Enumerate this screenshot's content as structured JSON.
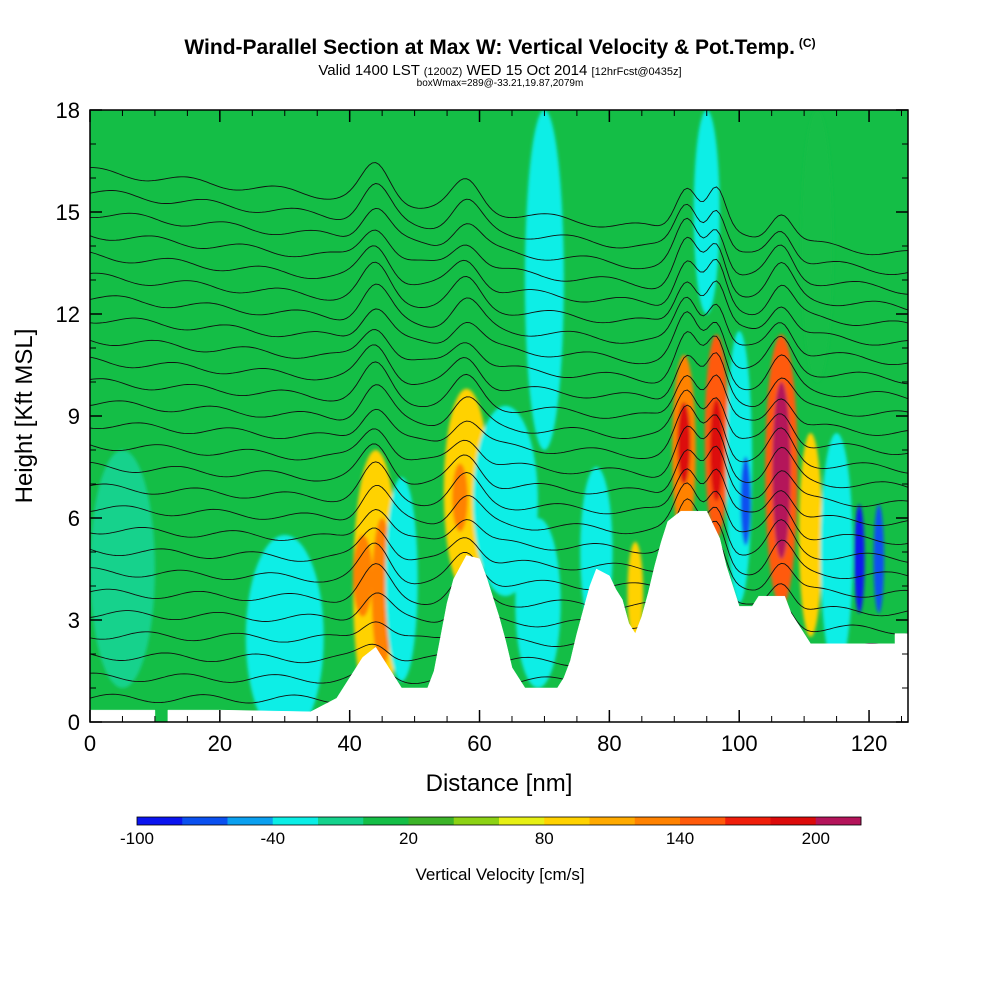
{
  "header": {
    "title": "Wind-Parallel Section at Max W: Vertical Velocity & Pot.Temp.",
    "title_mark": "(C)",
    "subtitle_main": "Valid 1400 LST",
    "subtitle_utc": "(1200Z)",
    "subtitle_date": "WED 15 Oct 2014",
    "subtitle_fcst": "[12hrFcst@0435z]",
    "detail": "boxWmax=289@-33.21,19.87,2079m"
  },
  "chart_data": {
    "type": "heatmap",
    "xlabel": "Distance [nm]",
    "ylabel": "Height [Kft MSL]",
    "xlim": [
      0,
      126
    ],
    "ylim": [
      0,
      18
    ],
    "xticks": [
      "0",
      "20",
      "40",
      "60",
      "80",
      "100",
      "120"
    ],
    "yticks": [
      "0",
      "3",
      "6",
      "9",
      "12",
      "15",
      "18"
    ],
    "colorbar": {
      "label": "Vertical Velocity [cm/s]",
      "tick_labels": [
        "-100",
        "-40",
        "20",
        "80",
        "140",
        "200"
      ],
      "tick_values": [
        -100,
        -40,
        20,
        80,
        140,
        200
      ],
      "min": -100,
      "step": 20,
      "colors": [
        "#0a14f0",
        "#0a50f0",
        "#0aa0f0",
        "#0aeee6",
        "#14d28c",
        "#14be46",
        "#3cb428",
        "#8cd214",
        "#e6f014",
        "#ffd200",
        "#ffaa00",
        "#ff8200",
        "#ff5a0a",
        "#f01e0a",
        "#dc0a0a",
        "#b4145a"
      ]
    },
    "background_color": "#14be46",
    "terrain": [
      [
        0,
        0.35
      ],
      [
        10,
        0.35
      ],
      [
        10,
        0
      ],
      [
        12,
        0
      ],
      [
        12,
        0.35
      ],
      [
        20,
        0.35
      ],
      [
        34,
        0.3
      ],
      [
        38,
        0.7
      ],
      [
        39,
        1.0
      ],
      [
        40,
        1.3
      ],
      [
        41,
        1.6
      ],
      [
        42,
        1.9
      ],
      [
        44,
        2.2
      ],
      [
        45,
        1.9
      ],
      [
        47,
        1.3
      ],
      [
        48,
        1.0
      ],
      [
        50,
        1.0
      ],
      [
        52,
        1.0
      ],
      [
        53,
        1.5
      ],
      [
        55,
        3.5
      ],
      [
        56,
        4.2
      ],
      [
        58,
        4.9
      ],
      [
        60,
        4.8
      ],
      [
        61,
        4.3
      ],
      [
        62,
        3.7
      ],
      [
        63,
        3.1
      ],
      [
        64,
        2.4
      ],
      [
        65,
        1.6
      ],
      [
        66,
        1.3
      ],
      [
        67,
        1.0
      ],
      [
        72,
        1.0
      ],
      [
        73,
        1.3
      ],
      [
        74,
        1.8
      ],
      [
        75,
        2.6
      ],
      [
        76,
        3.3
      ],
      [
        77,
        4.0
      ],
      [
        78,
        4.5
      ],
      [
        80,
        4.3
      ],
      [
        81,
        3.9
      ],
      [
        82,
        3.6
      ],
      [
        83,
        2.9
      ],
      [
        84,
        2.6
      ],
      [
        85,
        3.1
      ],
      [
        86,
        3.8
      ],
      [
        87,
        4.6
      ],
      [
        88,
        5.3
      ],
      [
        89,
        5.9
      ],
      [
        91,
        6.2
      ],
      [
        95,
        6.2
      ],
      [
        97,
        5.4
      ],
      [
        98,
        4.6
      ],
      [
        99,
        4.0
      ],
      [
        100,
        3.4
      ],
      [
        102,
        3.4
      ],
      [
        103,
        3.7
      ],
      [
        107,
        3.7
      ],
      [
        108,
        3.2
      ],
      [
        110,
        2.6
      ],
      [
        111,
        2.3
      ],
      [
        124,
        2.3
      ],
      [
        124,
        2.6
      ],
      [
        126,
        2.6
      ]
    ],
    "features": [
      {
        "x": 44,
        "z": 4.0,
        "w": 3.5,
        "h": 4.0,
        "value": 90
      },
      {
        "x": 42,
        "z": 4.3,
        "w": 1.5,
        "h": 1.2,
        "value": 130
      },
      {
        "x": 45,
        "z": 3.8,
        "w": 1.6,
        "h": 2.2,
        "value": 125
      },
      {
        "x": 48,
        "z": 4.2,
        "w": 2.5,
        "h": 3.0,
        "value": -40
      },
      {
        "x": 58,
        "z": 6.8,
        "w": 3.5,
        "h": 3.0,
        "value": 90
      },
      {
        "x": 57,
        "z": 6.6,
        "w": 1.2,
        "h": 1.0,
        "value": 135
      },
      {
        "x": 64,
        "z": 6.5,
        "w": 5.0,
        "h": 2.8,
        "value": -40
      },
      {
        "x": 69,
        "z": 3.5,
        "w": 3.5,
        "h": 2.5,
        "value": -40
      },
      {
        "x": 78,
        "z": 5.0,
        "w": 2.5,
        "h": 2.5,
        "value": -40
      },
      {
        "x": 84,
        "z": 3.8,
        "w": 1.2,
        "h": 1.5,
        "value": 95
      },
      {
        "x": 91.5,
        "z": 8.0,
        "w": 1.8,
        "h": 2.8,
        "value": 135
      },
      {
        "x": 91.5,
        "z": 8.2,
        "w": 1.0,
        "h": 1.2,
        "value": 185
      },
      {
        "x": 96.5,
        "z": 8.4,
        "w": 1.8,
        "h": 3.0,
        "value": 140
      },
      {
        "x": 96.5,
        "z": 8.0,
        "w": 1.0,
        "h": 1.5,
        "value": 190
      },
      {
        "x": 100,
        "z": 7.5,
        "w": 2.0,
        "h": 4.0,
        "value": -40
      },
      {
        "x": 101,
        "z": 6.5,
        "w": 0.8,
        "h": 1.3,
        "value": -75
      },
      {
        "x": 106.5,
        "z": 7.4,
        "w": 2.5,
        "h": 4.0,
        "value": 140
      },
      {
        "x": 106.5,
        "z": 7.4,
        "w": 1.4,
        "h": 2.6,
        "value": 200
      },
      {
        "x": 111,
        "z": 5.5,
        "w": 1.8,
        "h": 3.0,
        "value": 95
      },
      {
        "x": 115,
        "z": 5.0,
        "w": 2.5,
        "h": 3.5,
        "value": -40
      },
      {
        "x": 118.5,
        "z": 4.8,
        "w": 0.8,
        "h": 1.6,
        "value": -95
      },
      {
        "x": 121.5,
        "z": 4.8,
        "w": 0.8,
        "h": 1.6,
        "value": -75
      },
      {
        "x": 30,
        "z": 2.5,
        "w": 6.0,
        "h": 3.0,
        "value": -40
      },
      {
        "x": 5,
        "z": 4.5,
        "w": 5.0,
        "h": 3.5,
        "value": -20
      },
      {
        "x": 70,
        "z": 13.0,
        "w": 3.0,
        "h": 5.0,
        "value": -25
      },
      {
        "x": 95,
        "z": 15.0,
        "w": 2.0,
        "h": 3.0,
        "value": -40
      },
      {
        "x": 112,
        "z": 14.0,
        "w": 2.5,
        "h": 4.0,
        "value": 0
      }
    ],
    "isentropes": {
      "count": 26,
      "z0": 0.7,
      "spacing": 0.62,
      "bumps": [
        {
          "x": 44,
          "amp": 1.0,
          "width": 3.0
        },
        {
          "x": 58,
          "amp": 0.8,
          "width": 3.0
        },
        {
          "x": 92,
          "amp": 1.4,
          "width": 2.5
        },
        {
          "x": 96.5,
          "amp": 1.3,
          "width": 2.0
        },
        {
          "x": 106.5,
          "amp": 0.9,
          "width": 2.5
        }
      ]
    }
  }
}
